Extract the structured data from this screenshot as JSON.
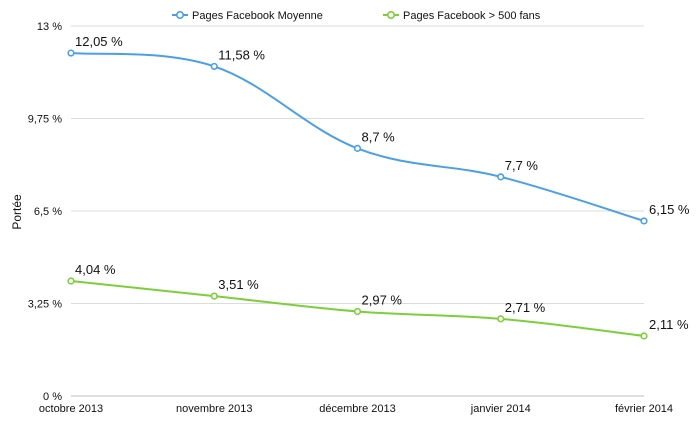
{
  "chart_data": {
    "type": "line",
    "title": "",
    "xlabel": "",
    "ylabel": "Portée",
    "categories": [
      "octobre 2013",
      "novembre 2013",
      "décembre 2013",
      "janvier 2014",
      "février 2014"
    ],
    "ylim": [
      0,
      13
    ],
    "y_ticks": [
      0,
      3.25,
      6.5,
      9.75,
      13
    ],
    "y_tick_labels": [
      "0 %",
      "3,25 %",
      "6,5 %",
      "9,75 %",
      "13 %"
    ],
    "grid": true,
    "legend_position": "top-center",
    "series": [
      {
        "name": "Pages Facebook Moyenne",
        "color": "#4a9fe6",
        "values": [
          12.05,
          11.58,
          8.7,
          7.7,
          6.15
        ],
        "labels": [
          "12,05 %",
          "11,58 %",
          "8,7 %",
          "7,7 %",
          "6,15 %"
        ]
      },
      {
        "name": "Pages Facebook > 500 fans",
        "color": "#7ccf3a",
        "values": [
          4.04,
          3.51,
          2.97,
          2.71,
          2.11
        ],
        "labels": [
          "4,04 %",
          "3,51 %",
          "2,97 %",
          "2,71 %",
          "2,11 %"
        ]
      }
    ]
  }
}
